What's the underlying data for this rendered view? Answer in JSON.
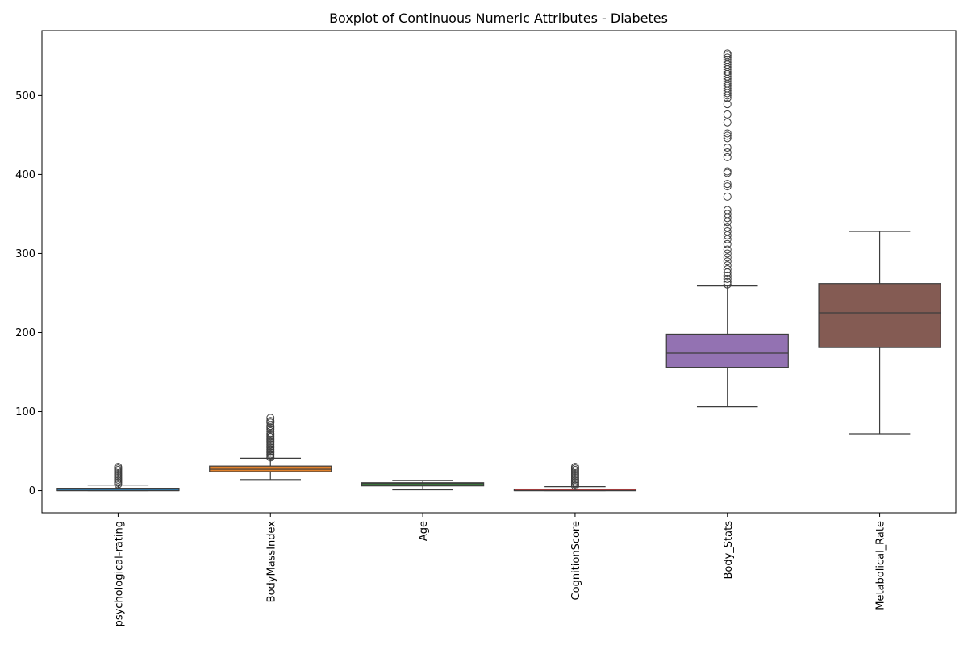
{
  "chart_data": {
    "type": "boxplot",
    "title": "Boxplot of Continuous Numeric Attributes - Diabetes",
    "xlabel": "",
    "ylabel": "",
    "ylim": [
      -28,
      582
    ],
    "yticks": [
      0,
      100,
      200,
      300,
      400,
      500
    ],
    "grid": false,
    "legend": "none",
    "categories": [
      "psychological-rating",
      "BodyMassIndex",
      "Age",
      "CognitionScore",
      "Body_Stats",
      "Metabolical_Rate"
    ],
    "boxes": [
      {
        "name": "psychological-rating",
        "color": "#3274a1",
        "whisker_low": 0,
        "q1": 0,
        "median": 0,
        "q3": 3,
        "whisker_high": 7,
        "outliers": [
          8,
          10,
          12,
          14,
          16,
          18,
          20,
          22,
          24,
          26,
          28,
          30
        ]
      },
      {
        "name": "BodyMassIndex",
        "color": "#e1812c",
        "whisker_low": 14,
        "q1": 24,
        "median": 27,
        "q3": 31,
        "whisker_high": 41,
        "outliers": [
          42,
          44,
          46,
          48,
          50,
          52,
          54,
          56,
          58,
          60,
          62,
          64,
          66,
          68,
          70,
          72,
          75,
          78,
          80,
          82,
          86,
          88,
          92
        ]
      },
      {
        "name": "Age",
        "color": "#3a923a",
        "whisker_low": 1,
        "q1": 6,
        "median": 9,
        "q3": 10,
        "whisker_high": 13,
        "outliers": []
      },
      {
        "name": "CognitionScore",
        "color": "#c03d3e",
        "whisker_low": 0,
        "q1": 0,
        "median": 0,
        "q3": 2,
        "whisker_high": 5,
        "outliers": [
          6,
          8,
          10,
          12,
          14,
          16,
          18,
          20,
          22,
          24,
          26,
          28,
          30
        ]
      },
      {
        "name": "Body_Stats",
        "color": "#9372b2",
        "whisker_low": 106,
        "q1": 156,
        "median": 174,
        "q3": 198,
        "whisker_high": 259,
        "outliers": [
          261,
          264,
          268,
          272,
          276,
          280,
          285,
          290,
          295,
          300,
          305,
          312,
          318,
          323,
          328,
          333,
          340,
          345,
          350,
          355,
          372,
          385,
          388,
          402,
          404,
          422,
          428,
          434,
          446,
          449,
          452,
          466,
          476,
          489,
          497,
          500,
          503,
          506,
          509,
          512,
          515,
          518,
          521,
          524,
          527,
          530,
          533,
          536,
          539,
          542,
          545,
          548,
          551,
          553
        ]
      },
      {
        "name": "Metabolical_Rate",
        "color": "#845b53",
        "whisker_low": 72,
        "q1": 181,
        "median": 225,
        "q3": 262,
        "whisker_high": 328,
        "outliers": []
      }
    ]
  }
}
